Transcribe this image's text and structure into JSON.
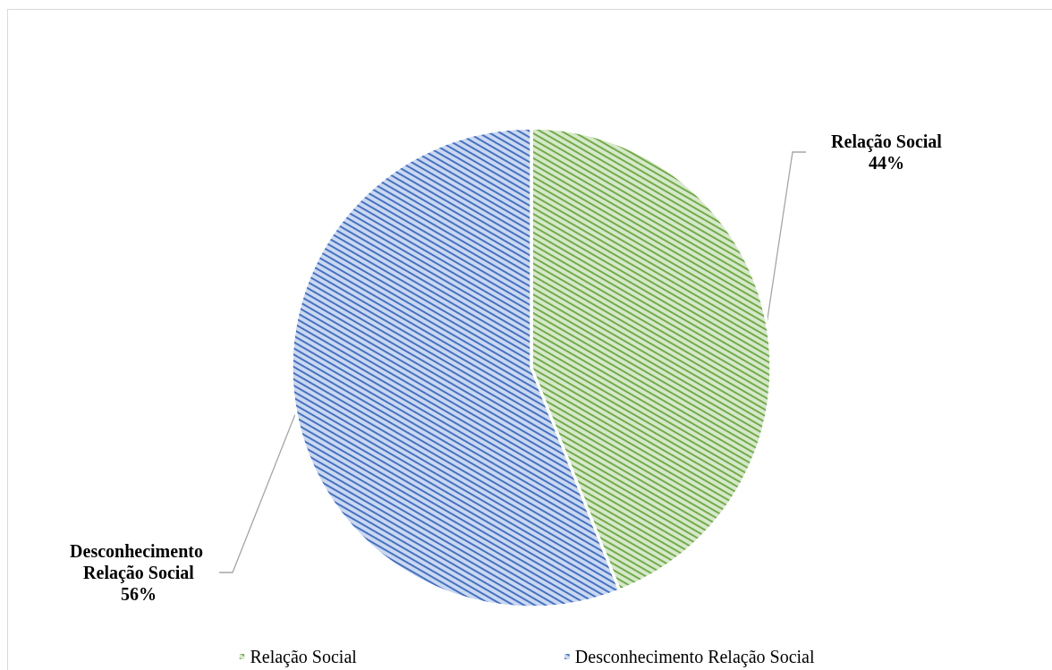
{
  "chart_data": {
    "type": "pie",
    "categories": [
      "Relação Social",
      "Desconhecimento Relação Social"
    ],
    "values": [
      44,
      56
    ],
    "colors": [
      "#70ad47",
      "#4472c4"
    ],
    "value_labels": [
      "44%",
      "56%"
    ],
    "legend": "bottom"
  }
}
